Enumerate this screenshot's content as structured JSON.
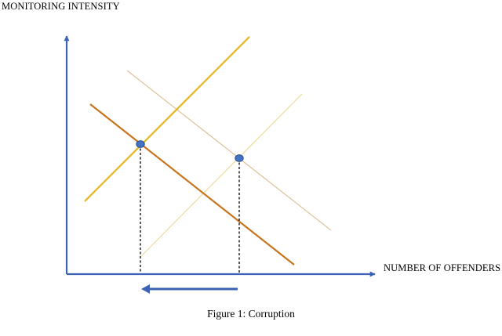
{
  "axes": {
    "y_label": "MONITORING INTENSITY",
    "x_label": "NUMBER OF OFFENDERS"
  },
  "caption": "Figure 1: Corruption",
  "colors": {
    "axis": "#3b62b5",
    "supply_main": "#e3b71c",
    "supply_faded": "#ecdca0",
    "demand_main": "#c8741e",
    "demand_faded": "#ddc29a",
    "marker_fill": "#4472c4",
    "marker_stroke": "#2c4e8a",
    "guide": "#000000"
  },
  "icons": {
    "shift_arrow": "left-arrow-icon"
  }
}
